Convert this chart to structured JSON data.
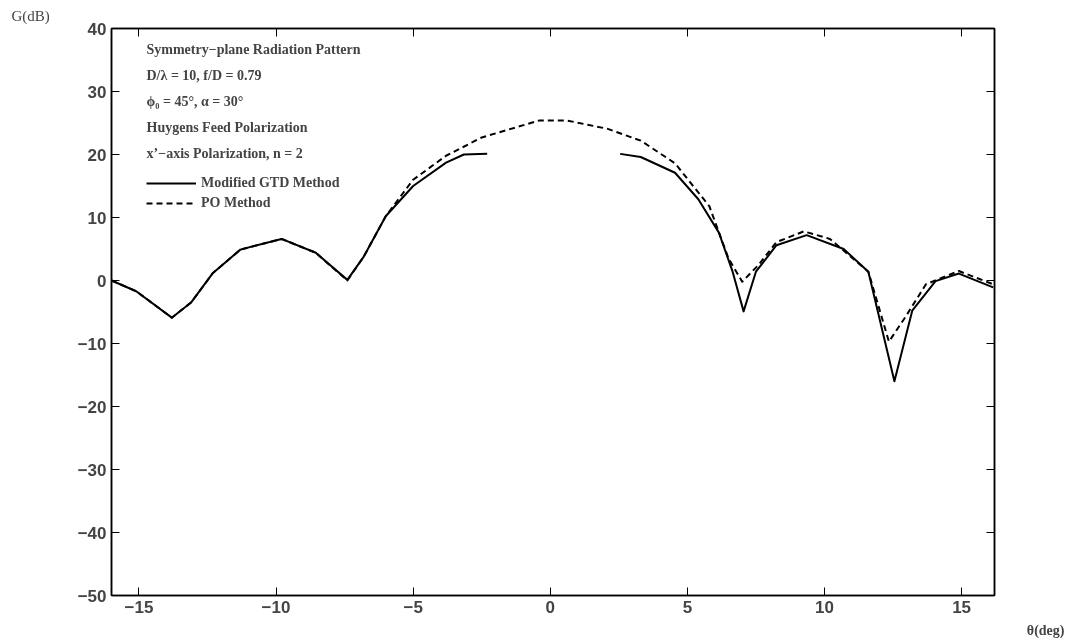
{
  "chart_data": {
    "type": "line",
    "xlabel": "θ(deg)",
    "ylabel": "G(dB)",
    "annotations": [
      "Symmetry−plane Radiation Pattern",
      "D/λ = 10,  f/D = 0.79",
      "ϕ₀ = 45°,   α = 30°",
      "Huygens Feed Polarization",
      "x’−axis Polarization,  n = 2"
    ],
    "series": [
      {
        "name": "Modified GTD Method",
        "color": "#000000",
        "line_style": "solid",
        "x": [
          -16,
          -15.1,
          -13.8,
          -13.1,
          -12.3,
          -11.3,
          -9.8,
          -8.55,
          -7.4,
          -6.8,
          -6.0,
          -5.0,
          -3.8,
          -3.15,
          -2.3,
          null,
          2.55,
          3.3,
          4.55,
          5.4,
          6.15,
          6.65,
          7.05,
          7.5,
          8.25,
          9.35,
          10.7,
          11.6,
          12.55,
          13.2,
          14.05,
          14.9,
          16.15
        ],
        "values": [
          0,
          -1.7,
          -5.9,
          -3.5,
          1.2,
          4.9,
          6.6,
          4.4,
          0.1,
          3.8,
          10.2,
          15.0,
          18.7,
          20,
          20.1,
          null,
          20.1,
          19.6,
          17.1,
          12.9,
          7.6,
          1.4,
          -4.9,
          1.4,
          5.6,
          7.2,
          5.0,
          1.4,
          -16,
          -4.8,
          -0.1,
          1.1,
          -1.1
        ]
      },
      {
        "name": "PO Method",
        "color": "#000000",
        "line_style": "dashed",
        "x": [
          -16,
          -15.1,
          -13.8,
          -13.1,
          -12.3,
          -11.3,
          -9.8,
          -8.55,
          -7.4,
          -6.8,
          -6.0,
          -5.0,
          -3.8,
          -2.5,
          -0.4,
          0.6,
          2.07,
          3.3,
          4.55,
          5.8,
          6.5,
          7.0,
          7.6,
          8.25,
          9.25,
          10.2,
          11.6,
          12.35,
          12.95,
          13.7,
          14.9,
          16.15
        ],
        "values": [
          0,
          -1.7,
          -5.9,
          -3.5,
          1.2,
          4.9,
          6.6,
          4.4,
          0,
          3.8,
          10.2,
          16,
          19.8,
          22.7,
          25.4,
          25.4,
          24.1,
          22.2,
          18.6,
          11.8,
          3.5,
          -0.2,
          2.5,
          6.1,
          7.8,
          6.6,
          1.4,
          -9.7,
          -5.8,
          -0.6,
          1.5,
          -0.6
        ]
      }
    ],
    "xlim": [
      -16,
      16.2
    ],
    "xticks": [
      -15,
      -10,
      -5,
      0,
      5,
      10,
      15
    ],
    "ylim": [
      -50,
      40
    ],
    "yticks": [
      -50,
      -40,
      -30,
      -20,
      -10,
      0,
      10,
      20,
      30,
      40
    ],
    "legend": "top left",
    "grid": false
  }
}
